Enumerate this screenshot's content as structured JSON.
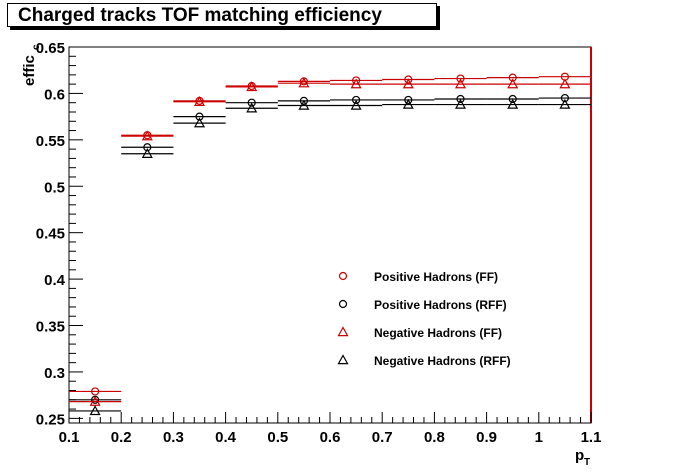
{
  "chart_data": {
    "type": "scatter",
    "title": "Charged tracks TOF matching efficiency",
    "xlabel_main": "p",
    "xlabel_sub": "T",
    "ylabel_main": "effic",
    "ylabel_sub": "c",
    "xlim": [
      0.1,
      1.1
    ],
    "ylim": [
      0.245,
      0.65
    ],
    "xticks": [
      0.1,
      0.2,
      0.3,
      0.4,
      0.5,
      0.6,
      0.7,
      0.8,
      0.9,
      1,
      1.1
    ],
    "xtick_labels": [
      "0.1",
      "0.2",
      "0.3",
      "0.4",
      "0.5",
      "0.6",
      "0.7",
      "0.8",
      "0.9",
      "1",
      "1.1"
    ],
    "yticks": [
      0.25,
      0.3,
      0.35,
      0.4,
      0.45,
      0.5,
      0.55,
      0.6,
      0.65
    ],
    "ytick_labels": [
      "0.25",
      "0.3",
      "0.35",
      "0.4",
      "0.45",
      "0.5",
      "0.55",
      "0.6",
      "0.65"
    ],
    "x": [
      0.15,
      0.25,
      0.35,
      0.45,
      0.55,
      0.65,
      0.75,
      0.85,
      0.95,
      1.05
    ],
    "x_bin_width": 0.1,
    "legend_position": "bottom-right",
    "series": [
      {
        "name": "Positive Hadrons (FF)",
        "marker": "circle",
        "color": "#cc0000",
        "values": [
          0.279,
          0.555,
          0.592,
          0.608,
          0.613,
          0.614,
          0.615,
          0.616,
          0.617,
          0.618
        ]
      },
      {
        "name": "Positive Hadrons (RFF)",
        "marker": "circle",
        "color": "#000000",
        "values": [
          0.27,
          0.542,
          0.575,
          0.59,
          0.592,
          0.593,
          0.593,
          0.594,
          0.594,
          0.595
        ]
      },
      {
        "name": "Negative Hadrons (FF)",
        "marker": "triangle",
        "color": "#cc0000",
        "values": [
          0.268,
          0.554,
          0.591,
          0.607,
          0.611,
          0.61,
          0.61,
          0.61,
          0.61,
          0.61
        ]
      },
      {
        "name": "Negative Hadrons (RFF)",
        "marker": "triangle",
        "color": "#000000",
        "values": [
          0.258,
          0.535,
          0.568,
          0.584,
          0.587,
          0.587,
          0.588,
          0.588,
          0.588,
          0.588
        ]
      }
    ]
  }
}
